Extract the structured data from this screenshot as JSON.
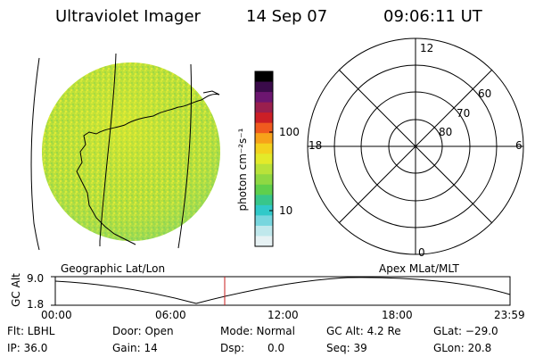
{
  "header": {
    "instrument": "Ultraviolet Imager",
    "date": "14 Sep 07",
    "time": "09:06:11 UT"
  },
  "colorbar": {
    "unit_label": "photon cm⁻²s⁻¹",
    "tick_100": "100",
    "tick_10": "10",
    "colors": [
      "#000000",
      "#3a0b4a",
      "#6c1670",
      "#9a1f4e",
      "#cc1f26",
      "#f05a1e",
      "#f7a21a",
      "#f3d21e",
      "#e3ea2a",
      "#b9e23a",
      "#8fd843",
      "#5fcf4c",
      "#38c68a",
      "#31c9c9",
      "#78d6de",
      "#c0e8ec",
      "#e7f2f4"
    ]
  },
  "polar": {
    "mlt_top": "12",
    "mlt_bottom": "0",
    "mlt_left": "18",
    "mlt_right": "6",
    "lat_60": "60",
    "lat_70": "70",
    "lat_80": "80"
  },
  "timeline": {
    "left_label": "Geographic Lat/Lon",
    "right_label": "Apex MLat/MLT",
    "y_axis_label": "GC Alt",
    "y_max": "9.0",
    "y_min": "1.8",
    "ticks": [
      "00:00",
      "06:00",
      "12:00",
      "18:00",
      "23:59"
    ],
    "current_time_color": "#c81e1e"
  },
  "info": {
    "flt": "Flt: LBHL",
    "ip": "IP: 36.0",
    "door": "Door: Open",
    "gain": "Gain: 14",
    "mode": "Mode: Normal",
    "dsp_label": "Dsp:",
    "dsp_value": "0.0",
    "gc_alt": "GC Alt: 4.2 Re",
    "seq": "Seq: 39",
    "glat": "GLat: −29.0",
    "glon": "GLon:  20.8"
  }
}
